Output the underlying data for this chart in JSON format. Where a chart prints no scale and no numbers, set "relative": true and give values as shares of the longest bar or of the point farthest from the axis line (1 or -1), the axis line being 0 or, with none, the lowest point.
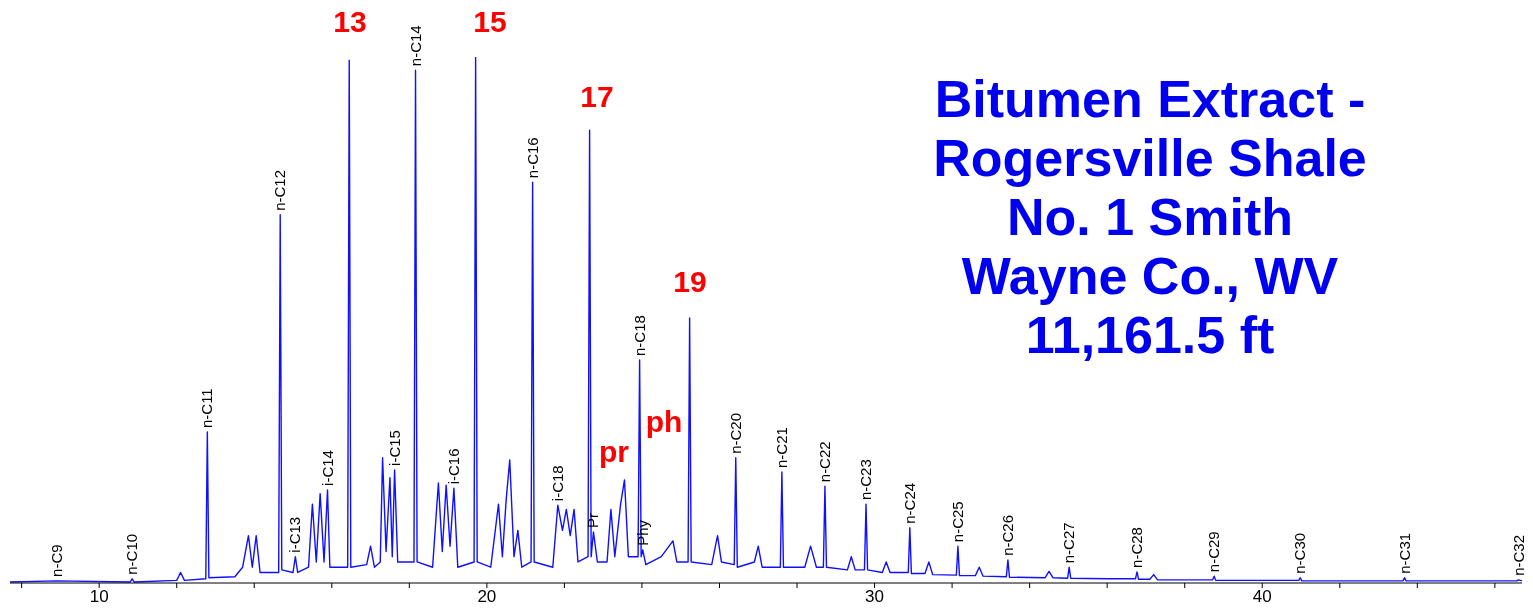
{
  "chart_data": {
    "type": "line",
    "relative": true,
    "title": "Bitumen Extract -\nRogersville Shale\nNo. 1 Smith\nWayne Co., WV\n11,161.5 ft",
    "xlim": [
      7.7,
      46.7
    ],
    "xticks": [
      {
        "value": 8,
        "label": null
      },
      10,
      {
        "value": 12,
        "label": null
      },
      {
        "value": 14,
        "label": null
      },
      {
        "value": 16,
        "label": null
      },
      {
        "value": 18,
        "label": null
      },
      20,
      {
        "value": 22,
        "label": null
      },
      {
        "value": 24,
        "label": null
      },
      {
        "value": 26,
        "label": null
      },
      {
        "value": 28,
        "label": null
      },
      30,
      {
        "value": 32,
        "label": null
      },
      {
        "value": 34,
        "label": null
      },
      {
        "value": 36,
        "label": null
      },
      {
        "value": 38,
        "label": null
      },
      40,
      {
        "value": 42,
        "label": null
      },
      {
        "value": 44,
        "label": null
      },
      {
        "value": 46,
        "label": null
      }
    ],
    "series": [
      {
        "color": "#1010ff",
        "x": [
          7.7,
          8.9,
          10.8,
          10.85,
          10.9,
          12.0,
          12.1,
          12.2,
          12.75,
          12.79,
          12.83,
          13.5,
          13.7,
          13.85,
          13.95,
          14.05,
          14.15,
          14.63,
          14.67,
          14.71,
          15.0,
          15.06,
          15.12,
          15.4,
          15.5,
          15.6,
          15.7,
          15.8,
          15.89,
          15.95,
          16.41,
          16.45,
          16.49,
          16.9,
          17.0,
          17.1,
          17.25,
          17.31,
          17.4,
          17.5,
          17.56,
          17.62,
          17.7,
          18.12,
          18.16,
          18.2,
          18.6,
          18.75,
          18.85,
          18.95,
          19.05,
          19.15,
          19.25,
          19.67,
          19.71,
          19.75,
          20.1,
          20.3,
          20.4,
          20.5,
          20.59,
          20.7,
          20.8,
          20.9,
          21.14,
          21.18,
          21.22,
          21.7,
          21.83,
          21.95,
          22.05,
          22.15,
          22.25,
          22.35,
          22.61,
          22.65,
          22.69,
          22.75,
          22.85,
          23.1,
          23.2,
          23.3,
          23.45,
          23.55,
          23.65,
          23.9,
          23.94,
          23.98,
          24.02,
          24.1,
          24.5,
          24.8,
          24.9,
          25.19,
          25.23,
          25.27,
          25.8,
          25.95,
          26.05,
          26.38,
          26.42,
          26.46,
          26.9,
          27.0,
          27.1,
          27.57,
          27.61,
          27.65,
          28.2,
          28.35,
          28.5,
          28.68,
          28.72,
          28.76,
          29.3,
          29.4,
          29.5,
          29.74,
          29.78,
          29.82,
          30.2,
          30.3,
          30.4,
          30.87,
          30.91,
          30.95,
          31.3,
          31.4,
          31.5,
          32.11,
          32.15,
          32.19,
          32.6,
          32.7,
          32.8,
          33.4,
          33.44,
          33.48,
          34.4,
          34.5,
          34.6,
          34.98,
          35.02,
          35.06,
          36.0,
          36.73,
          36.77,
          36.81,
          37.1,
          37.2,
          37.3,
          38.72,
          38.76,
          38.8,
          40.94,
          40.98,
          41.02,
          43.63,
          43.67,
          43.71,
          46.57,
          46.61,
          46.7
        ],
        "values": [
          0.002,
          0.004,
          0.002,
          0.008,
          0.002,
          0.005,
          0.02,
          0.005,
          0.008,
          0.287,
          0.01,
          0.012,
          0.03,
          0.09,
          0.03,
          0.09,
          0.02,
          0.02,
          0.7,
          0.025,
          0.02,
          0.05,
          0.02,
          0.03,
          0.15,
          0.04,
          0.17,
          0.04,
          0.177,
          0.03,
          0.03,
          0.994,
          0.03,
          0.035,
          0.07,
          0.03,
          0.04,
          0.238,
          0.06,
          0.2,
          0.05,
          0.215,
          0.04,
          0.04,
          0.975,
          0.04,
          0.03,
          0.19,
          0.06,
          0.186,
          0.07,
          0.18,
          0.03,
          0.04,
          1,
          0.04,
          0.03,
          0.15,
          0.05,
          0.16,
          0.234,
          0.05,
          0.1,
          0.03,
          0.04,
          0.762,
          0.04,
          0.03,
          0.148,
          0.1,
          0.14,
          0.09,
          0.14,
          0.04,
          0.05,
          0.861,
          0.05,
          0.097,
          0.04,
          0.04,
          0.14,
          0.05,
          0.15,
          0.196,
          0.05,
          0.05,
          0.424,
          0.05,
          0.063,
          0.035,
          0.05,
          0.08,
          0.04,
          0.04,
          0.504,
          0.04,
          0.035,
          0.09,
          0.04,
          0.035,
          0.238,
          0.03,
          0.04,
          0.07,
          0.03,
          0.03,
          0.211,
          0.03,
          0.03,
          0.07,
          0.03,
          0.03,
          0.184,
          0.03,
          0.025,
          0.05,
          0.025,
          0.025,
          0.15,
          0.025,
          0.02,
          0.04,
          0.02,
          0.02,
          0.105,
          0.018,
          0.018,
          0.04,
          0.016,
          0.015,
          0.07,
          0.014,
          0.014,
          0.03,
          0.013,
          0.012,
          0.044,
          0.011,
          0.01,
          0.022,
          0.01,
          0.009,
          0.03,
          0.009,
          0.008,
          0.008,
          0.021,
          0.007,
          0.007,
          0.016,
          0.006,
          0.006,
          0.013,
          0.005,
          0.005,
          0.01,
          0.004,
          0.004,
          0.01,
          0.004,
          0.004,
          0.006,
          0.004
        ]
      }
    ],
    "annotations": [
      {
        "text": "n-C9",
        "x": 8.9,
        "y": 0.004
      },
      {
        "text": "n-C10",
        "x": 10.85,
        "y": 0.008
      },
      {
        "text": "n-C11",
        "x": 12.79,
        "y": 0.287
      },
      {
        "text": "n-C12",
        "x": 14.67,
        "y": 0.7
      },
      {
        "text": "i-C13",
        "x": 15.06,
        "y": 0.05
      },
      {
        "text": "i-C14",
        "x": 15.89,
        "y": 0.177
      },
      {
        "text": "n-C14",
        "x": 18.16,
        "y": 0.975
      },
      {
        "text": "i-C15",
        "x": 17.62,
        "y": 0.215
      },
      {
        "text": "i-C16",
        "x": 19.15,
        "y": 0.18
      },
      {
        "text": "n-C16",
        "x": 21.18,
        "y": 0.762
      },
      {
        "text": "i-C18",
        "x": 21.83,
        "y": 0.148
      },
      {
        "text": "Pr",
        "x": 22.75,
        "y": 0.097
      },
      {
        "text": "n-C18",
        "x": 23.94,
        "y": 0.424
      },
      {
        "text": "Phy",
        "x": 24.02,
        "y": 0.063
      },
      {
        "text": "n-C20",
        "x": 26.42,
        "y": 0.238
      },
      {
        "text": "n-C21",
        "x": 27.61,
        "y": 0.211
      },
      {
        "text": "n-C22",
        "x": 28.72,
        "y": 0.184
      },
      {
        "text": "n-C23",
        "x": 29.78,
        "y": 0.15
      },
      {
        "text": "n-C24",
        "x": 30.91,
        "y": 0.105
      },
      {
        "text": "n-C25",
        "x": 32.15,
        "y": 0.07
      },
      {
        "text": "n-C26",
        "x": 33.44,
        "y": 0.044
      },
      {
        "text": "n-C27",
        "x": 35.02,
        "y": 0.03
      },
      {
        "text": "n-C28",
        "x": 36.77,
        "y": 0.021
      },
      {
        "text": "n-C29",
        "x": 38.76,
        "y": 0.013
      },
      {
        "text": "n-C30",
        "x": 40.98,
        "y": 0.01
      },
      {
        "text": "n-C31",
        "x": 43.67,
        "y": 0.01
      },
      {
        "text": "n-C32",
        "x": 46.61,
        "y": 0.006
      },
      "13",
      "15",
      "17",
      "19",
      "pr",
      "ph"
    ]
  }
}
